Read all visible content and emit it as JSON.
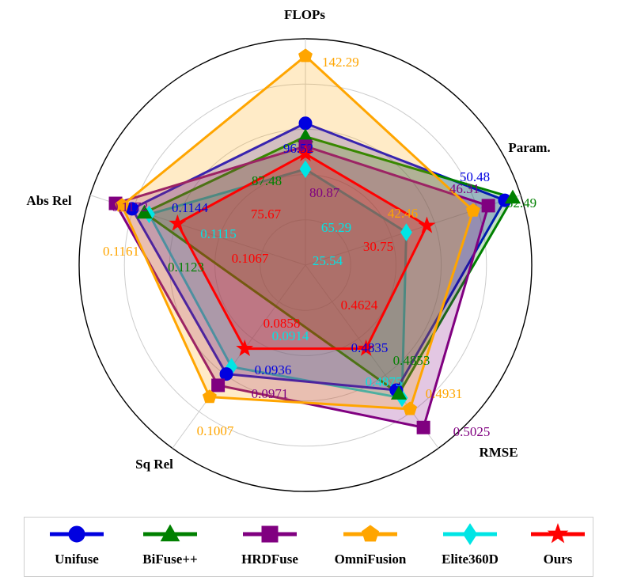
{
  "chart_data": {
    "type": "radar",
    "axes": [
      "FLOPs",
      "Param.",
      "RMSE",
      "Sq Rel",
      "Abs Rel"
    ],
    "series": [
      {
        "name": "Unifuse",
        "color": "#0000e0",
        "marker": "circle",
        "values": [
          96.52,
          50.48,
          0.4835,
          0.0936,
          0.1144
        ]
      },
      {
        "name": "BiFuse++",
        "color": "#008000",
        "marker": "triangle",
        "values": [
          87.48,
          52.49,
          0.4853,
          null,
          0.1123
        ]
      },
      {
        "name": "HRDFuse",
        "color": "#800080",
        "marker": "square",
        "values": [
          80.87,
          46.31,
          0.5025,
          0.0971,
          0.1172
        ]
      },
      {
        "name": "OmniFusion",
        "color": "#ffa500",
        "marker": "pentagon",
        "values": [
          142.29,
          42.46,
          0.4931,
          0.1007,
          0.1161
        ]
      },
      {
        "name": "Elite360D",
        "color": "#00e5e5",
        "marker": "diamond",
        "values": [
          65.29,
          25.54,
          0.4875,
          0.0914,
          0.1115
        ]
      },
      {
        "name": "Ours",
        "color": "#ff0000",
        "marker": "star",
        "values": [
          75.67,
          30.75,
          0.4624,
          0.0858,
          0.1067
        ]
      }
    ],
    "grid": true,
    "legend_position": "bottom"
  }
}
